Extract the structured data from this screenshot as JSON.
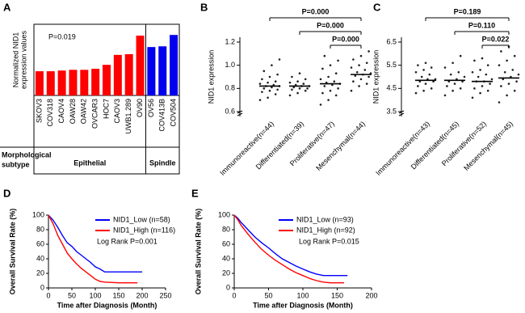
{
  "chart_data": [
    {
      "type": "bar",
      "panel": "A",
      "y_label": [
        "Normalized NID1",
        "expression values"
      ],
      "annotation": "P=0.019",
      "subtype_label": [
        "Morphological",
        "subtype"
      ],
      "ylim": [
        0,
        10
      ],
      "series": [
        {
          "name": "Epithelial",
          "color": "#ff0000",
          "categories": [
            "SKOV3",
            "COV318",
            "CAOV4",
            "OAW28",
            "OAW42",
            "OVCAR3",
            "HOC7",
            "CAOV3",
            "UWB1.289",
            "OV90"
          ],
          "values": [
            3.4,
            3.4,
            3.5,
            3.6,
            3.6,
            3.75,
            4.3,
            5.7,
            5.8,
            8.4
          ]
        },
        {
          "name": "Spindle",
          "color": "#0000ee",
          "categories": [
            "OV56",
            "COV413B",
            "COV504"
          ],
          "values": [
            6.8,
            6.9,
            8.5
          ]
        }
      ]
    },
    {
      "type": "strip",
      "panel": "B",
      "y_label": "NID1 expression",
      "categories": [
        "Immunoreactive(n=44)",
        "Differentiated(n=39)",
        "Proliferative(n=47)",
        "Mesenchymal(n=44)"
      ],
      "ylim": [
        0.6,
        1.2
      ],
      "yticks": [
        0.6,
        0.8,
        {
          "value": 1,
          "label": "1.0"
        },
        1.2
      ],
      "points": [
        [
          0.7,
          0.72,
          0.75,
          0.77,
          0.78,
          0.79,
          0.8,
          0.81,
          0.82,
          0.82,
          0.83,
          0.84,
          0.85,
          0.86,
          0.88,
          0.9,
          0.92,
          0.95,
          1.0,
          1.05
        ],
        [
          0.74,
          0.76,
          0.78,
          0.79,
          0.8,
          0.8,
          0.81,
          0.82,
          0.82,
          0.83,
          0.84,
          0.85,
          0.86,
          0.88,
          0.9,
          0.93
        ],
        [
          0.66,
          0.7,
          0.74,
          0.76,
          0.78,
          0.8,
          0.82,
          0.83,
          0.84,
          0.85,
          0.86,
          0.88,
          0.9,
          0.93,
          0.97,
          1.0,
          1.04,
          1.08
        ],
        [
          0.78,
          0.82,
          0.84,
          0.86,
          0.88,
          0.9,
          0.91,
          0.92,
          0.93,
          0.94,
          0.96,
          0.98,
          1.0,
          1.02,
          1.05,
          1.08,
          1.12
        ]
      ],
      "color": "#222222",
      "medians": [
        0.82,
        0.82,
        0.84,
        0.92
      ],
      "comparisons": [
        {
          "label": "P=0.000",
          "between": [
            "Immunoreactive(n=44)",
            "Mesenchymal(n=44)"
          ]
        },
        {
          "label": "P=0.000",
          "between": [
            "Differentiated(n=39)",
            "Mesenchymal(n=44)"
          ]
        },
        {
          "label": "P=0.000",
          "between": [
            "Proliferative(n=47)",
            "Mesenchymal(n=44)"
          ]
        }
      ]
    },
    {
      "type": "strip",
      "panel": "C",
      "y_label": "NID1 expression",
      "categories": [
        "Immunoreactive(n=43)",
        "Differentiated(n=45)",
        "Proliferative(n=52)",
        "Mesenchymal(n=45)"
      ],
      "ylim": [
        3.5,
        6.5
      ],
      "yticks": [
        3.5,
        4.5,
        5.5,
        6.5
      ],
      "points": [
        [
          4.3,
          4.4,
          4.5,
          4.6,
          4.7,
          4.8,
          4.8,
          4.9,
          4.9,
          5.0,
          5.1,
          5.2,
          5.3,
          5.4,
          5.5,
          5.6
        ],
        [
          4.2,
          4.4,
          4.5,
          4.6,
          4.7,
          4.8,
          4.8,
          4.9,
          5.0,
          5.1,
          5.2,
          5.4,
          5.6,
          5.9
        ],
        [
          4.1,
          4.3,
          4.4,
          4.5,
          4.6,
          4.7,
          4.8,
          4.8,
          4.9,
          5.0,
          5.1,
          5.2,
          5.3,
          5.5,
          5.7,
          5.8
        ],
        [
          3.9,
          4.2,
          4.4,
          4.6,
          4.7,
          4.8,
          4.9,
          5.0,
          5.1,
          5.2,
          5.3,
          5.5,
          5.7,
          5.9,
          6.1,
          6.3
        ]
      ],
      "color": "#222222",
      "medians": [
        4.85,
        4.85,
        4.8,
        4.95
      ],
      "comparisons": [
        {
          "label": "P=0.189",
          "between": [
            "Immunoreactive(n=43)",
            "Mesenchymal(n=45)"
          ]
        },
        {
          "label": "P=0.110",
          "between": [
            "Differentiated(n=45)",
            "Mesenchymal(n=45)"
          ]
        },
        {
          "label": "P=0.022",
          "between": [
            "Proliferative(n=52)",
            "Mesenchymal(n=45)"
          ]
        }
      ]
    },
    {
      "type": "line",
      "panel": "D",
      "x_label": "Time after Diagnosis (Month)",
      "y_label": "Overall Survival Rate (%)",
      "annotation": "Log Rank P=0.001",
      "xlim": [
        0,
        250
      ],
      "xticks": [
        0,
        50,
        100,
        150,
        200,
        250
      ],
      "ylim": [
        0,
        100
      ],
      "yticks": [
        0,
        20,
        40,
        60,
        80,
        100
      ],
      "series": [
        {
          "name": "NID1_Low (n=58)",
          "color": "#0000ff",
          "x": [
            0,
            10,
            20,
            30,
            40,
            50,
            60,
            70,
            80,
            90,
            100,
            110,
            120,
            140,
            160,
            180,
            200
          ],
          "values": [
            100,
            93,
            83,
            72,
            62,
            57,
            50,
            45,
            40,
            35,
            29,
            26,
            22,
            22,
            22,
            22,
            22
          ]
        },
        {
          "name": "NID1_High (n=116)",
          "color": "#ff0000",
          "x": [
            0,
            10,
            20,
            30,
            40,
            50,
            60,
            70,
            80,
            90,
            100,
            110,
            120,
            150,
            190
          ],
          "values": [
            100,
            88,
            72,
            60,
            48,
            40,
            33,
            27,
            22,
            17,
            12,
            9,
            8,
            7,
            7
          ]
        }
      ]
    },
    {
      "type": "line",
      "panel": "E",
      "x_label": "Time after Diagnosis (Month)",
      "y_label": "Overall Survival Rate (%)",
      "annotation": "Log Rank P=0.015",
      "xlim": [
        0,
        200
      ],
      "xticks": [
        0,
        50,
        100,
        150,
        200
      ],
      "ylim": [
        0,
        100
      ],
      "yticks": [
        0,
        20,
        40,
        60,
        80,
        100
      ],
      "series": [
        {
          "name": "NID1_Low (n=93)",
          "color": "#0000ff",
          "x": [
            0,
            5,
            10,
            20,
            30,
            40,
            50,
            60,
            70,
            80,
            90,
            100,
            110,
            120,
            130,
            140,
            150,
            160,
            165
          ],
          "values": [
            100,
            96,
            90,
            80,
            70,
            62,
            55,
            47,
            40,
            35,
            30,
            26,
            22,
            19,
            17,
            17,
            17,
            17,
            17
          ]
        },
        {
          "name": "NID1_High (n=92)",
          "color": "#ff0000",
          "x": [
            0,
            5,
            10,
            20,
            30,
            40,
            50,
            60,
            70,
            80,
            90,
            100,
            110,
            120,
            130,
            140,
            150,
            160
          ],
          "values": [
            100,
            94,
            86,
            74,
            63,
            53,
            45,
            38,
            32,
            26,
            21,
            17,
            13,
            10,
            8,
            7,
            7,
            7
          ]
        }
      ]
    }
  ]
}
